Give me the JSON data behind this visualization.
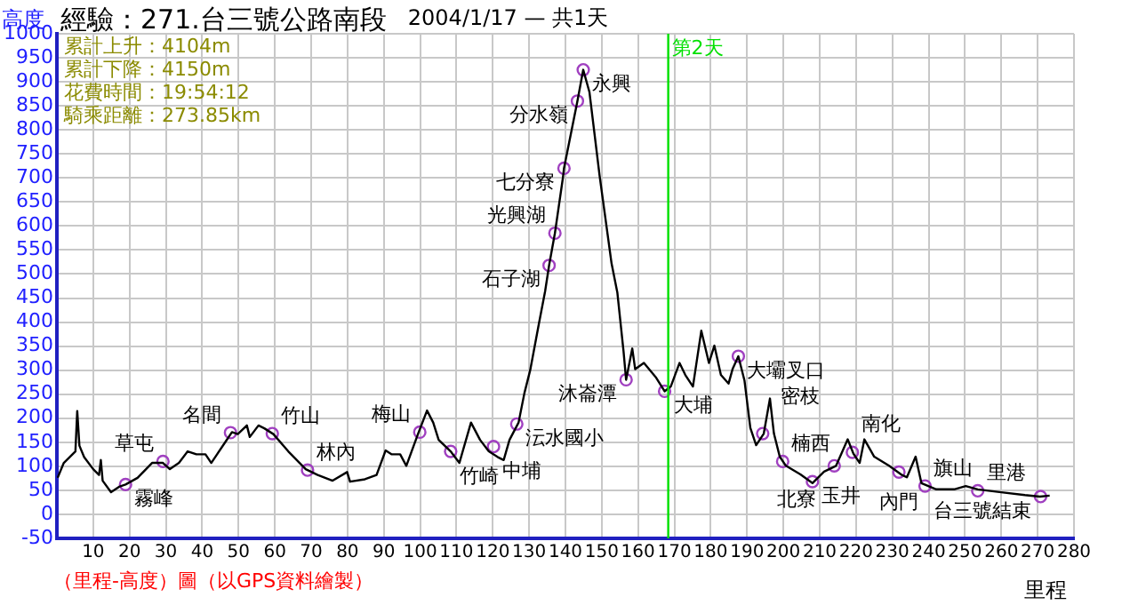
{
  "chart_data": {
    "type": "line",
    "title": "經驗：271.台三號公路南段",
    "subtitle": "2004/1/17 — 共1天",
    "xlabel": "里程",
    "ylabel": "高度",
    "xlim": [
      0,
      280
    ],
    "xticks": [
      10,
      20,
      30,
      40,
      50,
      60,
      70,
      80,
      90,
      100,
      110,
      120,
      130,
      140,
      150,
      160,
      170,
      180,
      190,
      200,
      210,
      220,
      230,
      240,
      250,
      260,
      270,
      280
    ],
    "ylim": [
      -50,
      1000
    ],
    "yticks": [
      -50,
      0,
      50,
      100,
      150,
      200,
      250,
      300,
      350,
      400,
      450,
      500,
      550,
      600,
      650,
      700,
      750,
      800,
      850,
      900,
      950,
      1000
    ],
    "grid": true,
    "legend": false,
    "series": [
      {
        "type": "line",
        "color": "#000000",
        "marker": "none",
        "x": [
          0.2,
          1.9,
          3.5,
          5.1,
          5.6,
          6.2,
          7.5,
          10,
          11.6,
          12.1,
          12.6,
          14.9,
          17.3,
          18.9,
          22.2,
          26.2,
          29.2,
          31.1,
          33.6,
          36,
          38.4,
          40.9,
          42.5,
          44.1,
          48.2,
          49.8,
          52.3,
          53.1,
          55.5,
          57.1,
          59.6,
          63.7,
          68.5,
          71.8,
          75.9,
          79.9,
          80.7,
          84.8,
          88,
          90.5,
          92.1,
          94.5,
          96.2,
          99.4,
          101.9,
          103.6,
          105.1,
          108.4,
          110.8,
          114,
          116.5,
          118.9,
          121.4,
          123,
          124.6,
          127.1,
          128.7,
          130.3,
          132.7,
          134.4,
          135.5,
          137.1,
          139.3,
          139.6,
          143.3,
          144.9,
          146.6,
          149.4,
          152.7,
          154.3,
          156,
          156.7,
          158.4,
          159.2,
          161.6,
          165,
          167.3,
          169,
          171.4,
          173,
          175.1,
          177.4,
          179.5,
          181,
          182.8,
          184.9,
          186,
          187.6,
          189.3,
          190.9,
          192.5,
          194.6,
          196.3,
          197.4,
          199,
          200.7,
          204.7,
          208,
          211.2,
          214.5,
          217.7,
          219.3,
          221,
          222.3,
          225,
          229.1,
          232.4,
          234,
          236.4,
          238,
          242.1,
          247,
          250.2,
          253.5,
          260,
          266.5,
          270.6,
          273.3
        ],
        "values": [
          76,
          107,
          119,
          131,
          215,
          143,
          119,
          94,
          82,
          113,
          70,
          46,
          58,
          62,
          76,
          107,
          107,
          94,
          107,
          131,
          125,
          125,
          107,
          125,
          171,
          167,
          185,
          161,
          185,
          179,
          167,
          131,
          94,
          82,
          70,
          88,
          68,
          73,
          82,
          133,
          125,
          125,
          101,
          167,
          216,
          191,
          155,
          131,
          107,
          191,
          155,
          131,
          119,
          113,
          155,
          191,
          252,
          300,
          397,
          464,
          518,
          585,
          700,
          720,
          860,
          925,
          879,
          705,
          522,
          461,
          339,
          280,
          345,
          302,
          315,
          284,
          256,
          266,
          315,
          290,
          266,
          382,
          315,
          351,
          290,
          272,
          302,
          329,
          278,
          180,
          144,
          168,
          241,
          168,
          120,
          101,
          83,
          65,
          89,
          101,
          156,
          126,
          107,
          156,
          120,
          101,
          83,
          77,
          120,
          65,
          52,
          52,
          59,
          52,
          46,
          40,
          37,
          39
        ]
      },
      {
        "type": "scatter",
        "color": "#a040c0",
        "marker": "circle",
        "x": [
          18.9,
          29.2,
          47.8,
          59.3,
          69,
          99.9,
          108.4,
          120.2,
          126.6,
          135.5,
          137.1,
          139.6,
          143.3,
          144.9,
          156.7,
          167.3,
          187.6,
          194.3,
          199.8,
          208,
          214,
          219,
          231.8,
          239,
          253.5,
          270.8
        ],
        "values": [
          62,
          110,
          170,
          168,
          92,
          171,
          131,
          141,
          188,
          518,
          585,
          720,
          860,
          925,
          280,
          256,
          329,
          168,
          110,
          68,
          101,
          129,
          88,
          59,
          49,
          37
        ]
      }
    ],
    "ref_lines": [
      {
        "axis": "x",
        "value": 168.3,
        "label": "第2天",
        "color": "#00e000"
      }
    ],
    "annotations": [
      "累計上升：4104m",
      "累計下降：4150m",
      "花費時間：19:54:12",
      "騎乘距離：273.85km",
      {
        "text": "霧峰",
        "x": 18.9,
        "y": 62
      },
      {
        "text": "草屯",
        "x": 29.2,
        "y": 110
      },
      {
        "text": "名間",
        "x": 47.8,
        "y": 170
      },
      {
        "text": "竹山",
        "x": 59.3,
        "y": 168
      },
      {
        "text": "林內",
        "x": 69,
        "y": 92
      },
      {
        "text": "梅山",
        "x": 99.9,
        "y": 171
      },
      {
        "text": "竹崎",
        "x": 108.4,
        "y": 131
      },
      {
        "text": "中埔",
        "x": 120.2,
        "y": 141
      },
      {
        "text": "沄水國小",
        "x": 126.6,
        "y": 188
      },
      {
        "text": "石子湖",
        "x": 135.5,
        "y": 518
      },
      {
        "text": "光興湖",
        "x": 137.1,
        "y": 585
      },
      {
        "text": "七分寮",
        "x": 139.6,
        "y": 720
      },
      {
        "text": "分水嶺",
        "x": 143.3,
        "y": 860
      },
      {
        "text": "永興",
        "x": 144.9,
        "y": 925
      },
      {
        "text": "沐崙潭",
        "x": 156.7,
        "y": 280
      },
      {
        "text": "大埔",
        "x": 167.3,
        "y": 256
      },
      {
        "text": "大壩叉口",
        "x": 187.6,
        "y": 329
      },
      {
        "text": "密枝",
        "x": 194.3,
        "y": 168
      },
      {
        "text": "楠西",
        "x": 199.8,
        "y": 110
      },
      {
        "text": "玉井",
        "x": 208,
        "y": 68
      },
      {
        "text": "北寮",
        "x": 214,
        "y": 101
      },
      {
        "text": "南化",
        "x": 219,
        "y": 129
      },
      {
        "text": "內門",
        "x": 231.8,
        "y": 88
      },
      {
        "text": "旗山",
        "x": 239,
        "y": 59
      },
      {
        "text": "里港",
        "x": 253.5,
        "y": 49
      },
      {
        "text": "台三號結束",
        "x": 270.8,
        "y": 37
      },
      "（里程-高度）圖（以GPS資料繪製）"
    ]
  }
}
